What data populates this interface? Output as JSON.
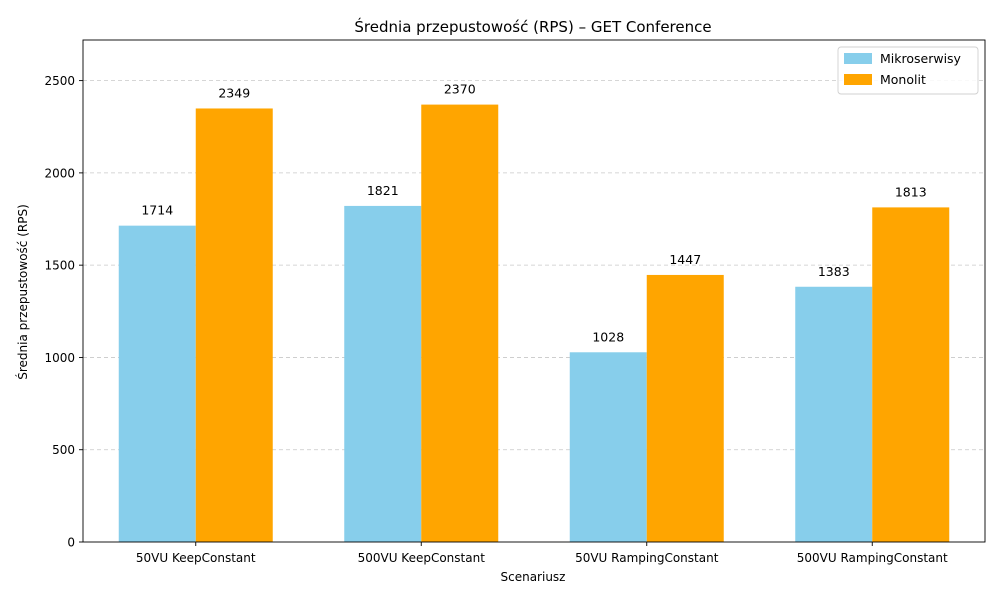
{
  "chart_data": {
    "type": "bar",
    "title": "Średnia przepustowość (RPS) – GET Conference",
    "xlabel": "Scenariusz",
    "ylabel": "Średnia przepustowość (RPS)",
    "categories": [
      "50VU KeepConstant",
      "500VU KeepConstant",
      "50VU RampingConstant",
      "500VU RampingConstant"
    ],
    "series": [
      {
        "name": "Mikroserwisy",
        "values": [
          1714,
          1821,
          1028,
          1383
        ],
        "color": "#87CEEB"
      },
      {
        "name": "Monolit",
        "values": [
          2349,
          2370,
          1447,
          1813
        ],
        "color": "#FFA500"
      }
    ],
    "yticks": [
      0,
      500,
      1000,
      1500,
      2000,
      2500
    ],
    "ylim": [
      0,
      2720
    ],
    "grid": "y-dashed",
    "legend": "top-right"
  }
}
